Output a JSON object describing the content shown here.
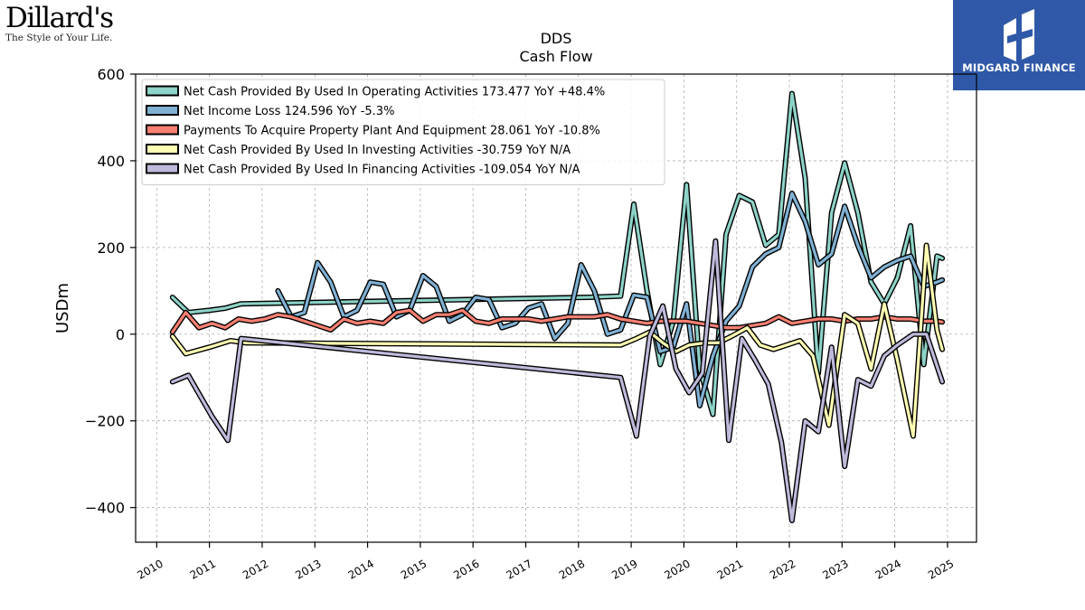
{
  "header": {
    "left_logo_name": "Dillard's",
    "left_logo_tagline": "The Style of Your Life.",
    "right_logo_brand": "MIDGARD FINANCE",
    "right_logo_bg": "#2f59a8"
  },
  "chart_data": {
    "type": "line",
    "title": "DDS",
    "subtitle": "Cash Flow",
    "ylabel": "USDm",
    "xlabel": "",
    "ylim": [
      -480,
      600
    ],
    "xlim": [
      2009.6,
      2025.55
    ],
    "yticks": [
      -400,
      -200,
      0,
      200,
      400,
      600
    ],
    "ytick_labels": [
      "−400",
      "−200",
      "0",
      "200",
      "400",
      "600"
    ],
    "xticks": [
      2010,
      2011,
      2012,
      2013,
      2014,
      2015,
      2016,
      2017,
      2018,
      2019,
      2020,
      2021,
      2022,
      2023,
      2024,
      2025
    ],
    "xtick_labels": [
      "2010",
      "2011",
      "2012",
      "2013",
      "2014",
      "2015",
      "2016",
      "2017",
      "2018",
      "2019",
      "2020",
      "2021",
      "2022",
      "2023",
      "2024",
      "2025"
    ],
    "grid": true,
    "legend_position": "top-left",
    "series": [
      {
        "name": "Net Cash Provided By Used In Operating Activities",
        "legend": "Net Cash Provided By Used In Operating Activities  173.477 YoY +48.4%",
        "color": "#8dd3c7",
        "points": [
          [
            2010.3,
            85
          ],
          [
            2010.6,
            50
          ],
          [
            2011.0,
            55
          ],
          [
            2011.3,
            60
          ],
          [
            2011.6,
            70
          ],
          [
            2018.2,
            85
          ],
          [
            2018.8,
            88
          ],
          [
            2019.05,
            300
          ],
          [
            2019.3,
            100
          ],
          [
            2019.55,
            -70
          ],
          [
            2019.8,
            30
          ],
          [
            2020.05,
            345
          ],
          [
            2020.3,
            -80
          ],
          [
            2020.55,
            -185
          ],
          [
            2020.8,
            230
          ],
          [
            2021.05,
            320
          ],
          [
            2021.3,
            305
          ],
          [
            2021.55,
            205
          ],
          [
            2021.8,
            230
          ],
          [
            2022.05,
            555
          ],
          [
            2022.3,
            360
          ],
          [
            2022.55,
            -90
          ],
          [
            2022.8,
            280
          ],
          [
            2023.05,
            395
          ],
          [
            2023.3,
            280
          ],
          [
            2023.55,
            120
          ],
          [
            2023.8,
            70
          ],
          [
            2024.05,
            130
          ],
          [
            2024.3,
            250
          ],
          [
            2024.55,
            -70
          ],
          [
            2024.8,
            180
          ],
          [
            2024.9,
            175
          ]
        ]
      },
      {
        "name": "Net Income Loss",
        "legend": "Net Income Loss  124.596 YoY -5.3%",
        "color": "#80b1d3",
        "points": [
          [
            2012.3,
            100
          ],
          [
            2012.55,
            40
          ],
          [
            2012.8,
            50
          ],
          [
            2013.05,
            165
          ],
          [
            2013.3,
            120
          ],
          [
            2013.55,
            40
          ],
          [
            2013.8,
            55
          ],
          [
            2014.05,
            120
          ],
          [
            2014.3,
            115
          ],
          [
            2014.55,
            40
          ],
          [
            2014.8,
            55
          ],
          [
            2015.05,
            135
          ],
          [
            2015.3,
            110
          ],
          [
            2015.55,
            30
          ],
          [
            2015.8,
            45
          ],
          [
            2016.05,
            85
          ],
          [
            2016.3,
            80
          ],
          [
            2016.55,
            15
          ],
          [
            2016.8,
            25
          ],
          [
            2017.05,
            60
          ],
          [
            2017.3,
            70
          ],
          [
            2017.55,
            -10
          ],
          [
            2017.8,
            25
          ],
          [
            2018.05,
            160
          ],
          [
            2018.3,
            100
          ],
          [
            2018.55,
            0
          ],
          [
            2018.8,
            10
          ],
          [
            2019.05,
            90
          ],
          [
            2019.3,
            85
          ],
          [
            2019.55,
            -40
          ],
          [
            2019.8,
            -30
          ],
          [
            2020.05,
            70
          ],
          [
            2020.3,
            -165
          ],
          [
            2020.55,
            -50
          ],
          [
            2020.8,
            30
          ],
          [
            2021.05,
            65
          ],
          [
            2021.3,
            155
          ],
          [
            2021.55,
            185
          ],
          [
            2021.8,
            200
          ],
          [
            2022.05,
            325
          ],
          [
            2022.3,
            260
          ],
          [
            2022.55,
            160
          ],
          [
            2022.8,
            185
          ],
          [
            2023.05,
            295
          ],
          [
            2023.3,
            205
          ],
          [
            2023.55,
            130
          ],
          [
            2023.8,
            155
          ],
          [
            2024.05,
            170
          ],
          [
            2024.3,
            180
          ],
          [
            2024.55,
            110
          ],
          [
            2024.8,
            120
          ],
          [
            2024.9,
            125
          ]
        ]
      },
      {
        "name": "Payments To Acquire Property Plant And Equipment",
        "legend": "Payments To Acquire Property Plant And Equipment  28.061 YoY -10.8%",
        "color": "#fb8072",
        "points": [
          [
            2010.3,
            5
          ],
          [
            2010.55,
            50
          ],
          [
            2010.8,
            15
          ],
          [
            2011.05,
            25
          ],
          [
            2011.3,
            15
          ],
          [
            2011.55,
            35
          ],
          [
            2011.8,
            30
          ],
          [
            2012.05,
            35
          ],
          [
            2012.3,
            45
          ],
          [
            2012.55,
            40
          ],
          [
            2012.8,
            30
          ],
          [
            2013.05,
            20
          ],
          [
            2013.3,
            10
          ],
          [
            2013.55,
            35
          ],
          [
            2013.8,
            25
          ],
          [
            2014.05,
            30
          ],
          [
            2014.3,
            25
          ],
          [
            2014.55,
            50
          ],
          [
            2014.8,
            55
          ],
          [
            2015.05,
            30
          ],
          [
            2015.3,
            45
          ],
          [
            2015.55,
            45
          ],
          [
            2015.8,
            55
          ],
          [
            2016.05,
            30
          ],
          [
            2016.3,
            25
          ],
          [
            2016.55,
            35
          ],
          [
            2016.8,
            35
          ],
          [
            2017.05,
            35
          ],
          [
            2017.3,
            30
          ],
          [
            2017.55,
            35
          ],
          [
            2017.8,
            40
          ],
          [
            2018.05,
            40
          ],
          [
            2018.3,
            40
          ],
          [
            2018.55,
            45
          ],
          [
            2018.8,
            35
          ],
          [
            2019.05,
            30
          ],
          [
            2019.3,
            25
          ],
          [
            2019.55,
            30
          ],
          [
            2019.8,
            30
          ],
          [
            2020.05,
            30
          ],
          [
            2020.3,
            25
          ],
          [
            2020.55,
            20
          ],
          [
            2020.8,
            15
          ],
          [
            2021.05,
            15
          ],
          [
            2021.3,
            20
          ],
          [
            2021.55,
            25
          ],
          [
            2021.8,
            40
          ],
          [
            2022.05,
            25
          ],
          [
            2022.3,
            30
          ],
          [
            2022.55,
            35
          ],
          [
            2022.8,
            35
          ],
          [
            2023.05,
            30
          ],
          [
            2023.3,
            35
          ],
          [
            2023.55,
            35
          ],
          [
            2023.8,
            40
          ],
          [
            2024.05,
            35
          ],
          [
            2024.3,
            35
          ],
          [
            2024.55,
            30
          ],
          [
            2024.8,
            30
          ],
          [
            2024.9,
            28
          ]
        ]
      },
      {
        "name": "Net Cash Provided By Used In Investing Activities",
        "legend": "Net Cash Provided By Used In Investing Activities  -30.759 YoY N/A",
        "color": "#ffffb3",
        "points": [
          [
            2010.3,
            -5
          ],
          [
            2010.55,
            -45
          ],
          [
            2011.0,
            -30
          ],
          [
            2011.4,
            -15
          ],
          [
            2011.7,
            -20
          ],
          [
            2018.8,
            -25
          ],
          [
            2019.1,
            -10
          ],
          [
            2019.35,
            5
          ],
          [
            2019.6,
            -20
          ],
          [
            2019.85,
            -40
          ],
          [
            2020.1,
            -25
          ],
          [
            2020.4,
            -20
          ],
          [
            2020.65,
            -20
          ],
          [
            2020.9,
            -5
          ],
          [
            2021.2,
            15
          ],
          [
            2021.45,
            -25
          ],
          [
            2021.7,
            -35
          ],
          [
            2021.95,
            -25
          ],
          [
            2022.2,
            -15
          ],
          [
            2022.45,
            -50
          ],
          [
            2022.75,
            -210
          ],
          [
            2023.05,
            45
          ],
          [
            2023.3,
            25
          ],
          [
            2023.55,
            -80
          ],
          [
            2023.8,
            70
          ],
          [
            2024.05,
            -60
          ],
          [
            2024.35,
            -235
          ],
          [
            2024.6,
            205
          ],
          [
            2024.8,
            10
          ],
          [
            2024.9,
            -35
          ]
        ]
      },
      {
        "name": "Net Cash Provided By Used In Financing Activities",
        "legend": "Net Cash Provided By Used In Financing Activities  -109.054 YoY N/A",
        "color": "#bebada",
        "points": [
          [
            2010.3,
            -110
          ],
          [
            2010.6,
            -95
          ],
          [
            2011.05,
            -190
          ],
          [
            2011.35,
            -245
          ],
          [
            2011.6,
            -10
          ],
          [
            2018.8,
            -100
          ],
          [
            2019.1,
            -235
          ],
          [
            2019.35,
            -5
          ],
          [
            2019.6,
            65
          ],
          [
            2019.85,
            -80
          ],
          [
            2020.1,
            -135
          ],
          [
            2020.35,
            -90
          ],
          [
            2020.6,
            215
          ],
          [
            2020.85,
            -245
          ],
          [
            2021.1,
            -10
          ],
          [
            2021.35,
            -60
          ],
          [
            2021.6,
            -115
          ],
          [
            2021.85,
            -250
          ],
          [
            2022.05,
            -430
          ],
          [
            2022.3,
            -200
          ],
          [
            2022.55,
            -225
          ],
          [
            2022.8,
            -30
          ],
          [
            2023.05,
            -305
          ],
          [
            2023.3,
            -105
          ],
          [
            2023.55,
            -120
          ],
          [
            2023.8,
            -50
          ],
          [
            2024.05,
            -25
          ],
          [
            2024.35,
            0
          ],
          [
            2024.6,
            0
          ],
          [
            2024.9,
            -110
          ]
        ]
      }
    ]
  }
}
